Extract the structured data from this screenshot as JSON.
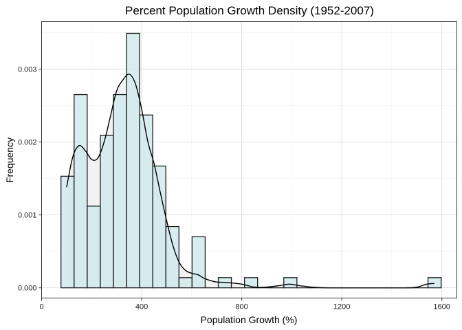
{
  "chart_data": {
    "type": "histogram",
    "title": "Percent Population Growth Density (1952-2007)",
    "xlabel": "Population Growth (%)",
    "ylabel": "Frequency",
    "xlim": [
      0,
      1660
    ],
    "ylim": [
      -0.00014,
      0.00365
    ],
    "x_ticks": [
      0,
      400,
      800,
      1200,
      1600
    ],
    "y_ticks": [
      0.0,
      0.001,
      0.002,
      0.003
    ],
    "x_tick_labels": [
      "0",
      "400",
      "800",
      "1200",
      "1600"
    ],
    "y_tick_labels": [
      "0.000",
      "0.001",
      "0.002",
      "0.003"
    ],
    "grid": true,
    "bin_width": 52.4,
    "bins": [
      {
        "x0": 77.5,
        "x1": 129.9,
        "value": 0.00153
      },
      {
        "x0": 129.9,
        "x1": 182.3,
        "value": 0.00265
      },
      {
        "x0": 182.3,
        "x1": 234.7,
        "value": 0.00112
      },
      {
        "x0": 234.7,
        "x1": 287.1,
        "value": 0.00209
      },
      {
        "x0": 287.1,
        "x1": 339.5,
        "value": 0.00265
      },
      {
        "x0": 339.5,
        "x1": 391.9,
        "value": 0.00349
      },
      {
        "x0": 391.9,
        "x1": 444.3,
        "value": 0.00237
      },
      {
        "x0": 444.3,
        "x1": 496.7,
        "value": 0.00167
      },
      {
        "x0": 496.7,
        "x1": 549.1,
        "value": 0.00084
      },
      {
        "x0": 549.1,
        "x1": 601.5,
        "value": 0.00014
      },
      {
        "x0": 601.5,
        "x1": 653.9,
        "value": 0.0007
      },
      {
        "x0": 653.9,
        "x1": 706.3,
        "value": 0.0
      },
      {
        "x0": 706.3,
        "x1": 758.7,
        "value": 0.00014
      },
      {
        "x0": 758.7,
        "x1": 811.1,
        "value": 0.0
      },
      {
        "x0": 811.1,
        "x1": 863.5,
        "value": 0.00014
      },
      {
        "x0": 863.5,
        "x1": 915.9,
        "value": 0.0
      },
      {
        "x0": 915.9,
        "x1": 968.3,
        "value": 0.0
      },
      {
        "x0": 968.3,
        "x1": 1020.7,
        "value": 0.00014
      },
      {
        "x0": 1020.7,
        "x1": 1073.1,
        "value": 0.0
      },
      {
        "x0": 1073.1,
        "x1": 1125.5,
        "value": 0.0
      },
      {
        "x0": 1125.5,
        "x1": 1177.9,
        "value": 0.0
      },
      {
        "x0": 1177.9,
        "x1": 1230.3,
        "value": 0.0
      },
      {
        "x0": 1230.3,
        "x1": 1282.7,
        "value": 0.0
      },
      {
        "x0": 1282.7,
        "x1": 1335.1,
        "value": 0.0
      },
      {
        "x0": 1335.1,
        "x1": 1387.5,
        "value": 0.0
      },
      {
        "x0": 1387.5,
        "x1": 1439.9,
        "value": 0.0
      },
      {
        "x0": 1439.9,
        "x1": 1492.3,
        "value": 0.0
      },
      {
        "x0": 1492.3,
        "x1": 1544.7,
        "value": 0.0
      },
      {
        "x0": 1544.7,
        "x1": 1597.1,
        "value": 0.00014
      }
    ],
    "density_curve": [
      [
        100,
        0.00138
      ],
      [
        125,
        0.0018
      ],
      [
        150,
        0.00195
      ],
      [
        175,
        0.00188
      ],
      [
        200,
        0.00176
      ],
      [
        225,
        0.00178
      ],
      [
        250,
        0.002
      ],
      [
        275,
        0.00235
      ],
      [
        300,
        0.0027
      ],
      [
        325,
        0.00285
      ],
      [
        350,
        0.00293
      ],
      [
        375,
        0.0028
      ],
      [
        400,
        0.00245
      ],
      [
        425,
        0.002
      ],
      [
        450,
        0.0017
      ],
      [
        475,
        0.0013
      ],
      [
        500,
        0.00092
      ],
      [
        525,
        0.00058
      ],
      [
        550,
        0.00035
      ],
      [
        575,
        0.00024
      ],
      [
        600,
        0.0002
      ],
      [
        625,
        0.00018
      ],
      [
        650,
        0.00013
      ],
      [
        675,
        0.0001
      ],
      [
        700,
        8e-05
      ],
      [
        750,
        7e-05
      ],
      [
        800,
        5e-05
      ],
      [
        825,
        3e-05
      ],
      [
        850,
        1e-05
      ],
      [
        900,
        1e-05
      ],
      [
        950,
        3e-05
      ],
      [
        990,
        5e-05
      ],
      [
        1030,
        3e-05
      ],
      [
        1080,
        1e-05
      ],
      [
        1150,
        0.0
      ],
      [
        1300,
        0.0
      ],
      [
        1450,
        0.0
      ],
      [
        1500,
        1e-05
      ],
      [
        1540,
        5e-05
      ],
      [
        1570,
        6e-05
      ]
    ],
    "colors": {
      "bar_fill": "#cde9ec",
      "bar_stroke": "#1a1a1a",
      "density_fill": "#f2f2f2",
      "density_line": "#000000",
      "grid": "#d9d9d9",
      "panel_border": "#333333"
    }
  }
}
